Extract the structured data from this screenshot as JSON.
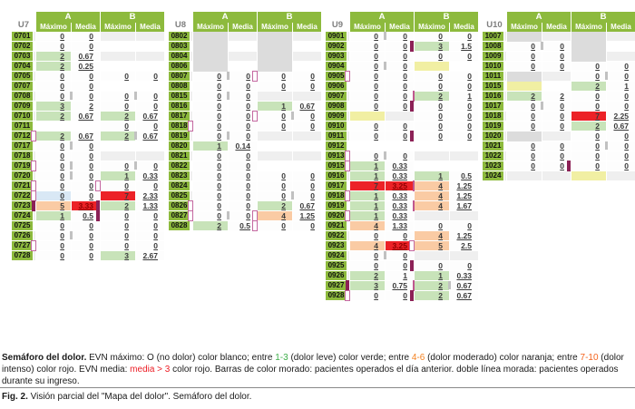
{
  "headers": {
    "groups": [
      "A",
      "B"
    ],
    "cols": [
      "Máximo",
      "Media",
      "Máximo",
      "Media"
    ]
  },
  "colors": {
    "header_green": "#8DBA3D",
    "cell_green": "#C8E3B9",
    "cell_orange": "#FACBA4",
    "cell_red": "#EC2227",
    "cell_yellow": "#F1EFA3",
    "cell_blue": "#D9E8F5",
    "cell_gray_block": "#DCDCDC",
    "purple_bar": "#8C2156",
    "purple_outline": "#C468A0",
    "legend": {
      "green": "#3DAE49",
      "orange": "#F58220",
      "orange2": "#F4641E",
      "red": "#EC1C24"
    }
  },
  "units": [
    {
      "label": "U7",
      "rows": [
        {
          "id": "0701",
          "c": [
            "0",
            "0",
            "",
            ""
          ],
          "m": []
        },
        {
          "id": "0702",
          "c": [
            "0",
            "0",
            "",
            ""
          ],
          "m": []
        },
        {
          "id": "0703",
          "c": [
            "2|g",
            "0.67",
            "",
            ""
          ],
          "m": []
        },
        {
          "id": "0704",
          "c": [
            "2|g",
            "0.25",
            "",
            ""
          ],
          "m": []
        },
        {
          "id": "0705",
          "c": [
            "0",
            "0",
            "0",
            "0"
          ],
          "m": []
        },
        {
          "id": "0707",
          "c": [
            "0",
            "0",
            "",
            ""
          ],
          "m": []
        },
        {
          "id": "0708",
          "c": [
            "0",
            "0",
            "0",
            "0"
          ],
          "m": [
            "ga",
            "gb"
          ]
        },
        {
          "id": "0709",
          "c": [
            "3|g",
            "2",
            "0",
            "0"
          ],
          "m": []
        },
        {
          "id": "0710",
          "c": [
            "2|g",
            "0.67",
            "2|g",
            "0.67"
          ],
          "m": []
        },
        {
          "id": "0711",
          "c": [
            "",
            "",
            "0",
            "0"
          ],
          "m": []
        },
        {
          "id": "0712",
          "c": [
            "2|g",
            "0.67",
            "2|g",
            "0.67"
          ],
          "m": [
            "Ao",
            "gb"
          ]
        },
        {
          "id": "0717",
          "c": [
            "0",
            "0",
            "",
            ""
          ],
          "m": [
            "ga"
          ]
        },
        {
          "id": "0718",
          "c": [
            "0",
            "0",
            "",
            ""
          ],
          "m": []
        },
        {
          "id": "0719",
          "c": [
            "0",
            "0",
            "0",
            "0"
          ],
          "m": [
            "Ao",
            "ga",
            "gb"
          ]
        },
        {
          "id": "0720",
          "c": [
            "0",
            "0",
            "1|g",
            "0.33"
          ],
          "m": [
            "ga"
          ]
        },
        {
          "id": "0721",
          "c": [
            "0",
            "0",
            "0",
            "0"
          ],
          "m": [
            "Ao",
            "Bo"
          ]
        },
        {
          "id": "0722",
          "c": [
            "0|b",
            "0",
            "7|r",
            "2.33"
          ],
          "m": [
            "Ao"
          ]
        },
        {
          "id": "0723",
          "c": [
            "5|o",
            "3.33|R",
            "2|g",
            "1.33"
          ],
          "m": [
            "As",
            "Bs"
          ]
        },
        {
          "id": "0724",
          "c": [
            "1|g",
            "0.5",
            "0",
            "0"
          ],
          "m": [
            "Bs"
          ]
        },
        {
          "id": "0725",
          "c": [
            "0",
            "0",
            "0",
            "0"
          ],
          "m": []
        },
        {
          "id": "0726",
          "c": [
            "0",
            "0",
            "0",
            "0"
          ],
          "m": [
            "ga"
          ]
        },
        {
          "id": "0727",
          "c": [
            "0",
            "0",
            "0",
            "0"
          ],
          "m": [
            "Ao"
          ]
        },
        {
          "id": "0728",
          "c": [
            "0",
            "0",
            "3|g",
            "2.67"
          ],
          "m": []
        }
      ]
    },
    {
      "label": "U8",
      "rows": [
        {
          "id": "0802",
          "c": [
            "|G",
            "",
            "|G",
            ""
          ],
          "m": []
        },
        {
          "id": "0803",
          "c": [
            "|G",
            "",
            "|G",
            ""
          ],
          "m": []
        },
        {
          "id": "0804",
          "c": [
            "|G",
            "",
            "|G",
            ""
          ],
          "m": []
        },
        {
          "id": "0806",
          "c": [
            "|G",
            "",
            "|G",
            ""
          ],
          "m": []
        },
        {
          "id": "0807",
          "c": [
            "0",
            "0",
            "0",
            "0"
          ],
          "m": [
            "ga",
            "Bo"
          ]
        },
        {
          "id": "0808",
          "c": [
            "0",
            "0",
            "0",
            "0"
          ],
          "m": []
        },
        {
          "id": "0815",
          "c": [
            "0",
            "0",
            "",
            ""
          ],
          "m": [
            "ga"
          ]
        },
        {
          "id": "0816",
          "c": [
            "0",
            "0",
            "1|g",
            "0.67"
          ],
          "m": []
        },
        {
          "id": "0817",
          "c": [
            "0",
            "0",
            "0",
            "0"
          ],
          "m": [
            "Bo",
            "gb"
          ]
        },
        {
          "id": "0818",
          "c": [
            "0",
            "0",
            "0",
            "0"
          ],
          "m": [
            "Ao"
          ]
        },
        {
          "id": "0819",
          "c": [
            "0",
            "0",
            "",
            ""
          ],
          "m": [
            "ga"
          ]
        },
        {
          "id": "0820",
          "c": [
            "1|g",
            "0.14",
            "",
            ""
          ],
          "m": []
        },
        {
          "id": "0821",
          "c": [
            "0",
            "0",
            "",
            ""
          ],
          "m": []
        },
        {
          "id": "0822",
          "c": [
            "0",
            "0",
            "",
            ""
          ],
          "m": []
        },
        {
          "id": "0823",
          "c": [
            "0",
            "0",
            "0",
            "0"
          ],
          "m": []
        },
        {
          "id": "0824",
          "c": [
            "0",
            "0",
            "0",
            "0"
          ],
          "m": []
        },
        {
          "id": "0825",
          "c": [
            "0",
            "0",
            "0",
            "0"
          ],
          "m": [
            "gb"
          ]
        },
        {
          "id": "0826",
          "c": [
            "0",
            "0",
            "2|g",
            "0.67"
          ],
          "m": [
            "Ao"
          ]
        },
        {
          "id": "0827",
          "c": [
            "0",
            "0",
            "4|o",
            "1.25"
          ],
          "m": [
            "Ao",
            "ga",
            "Bo"
          ]
        },
        {
          "id": "0828",
          "c": [
            "2|g",
            "0.5",
            "0",
            "0"
          ],
          "m": [
            "Bo"
          ]
        }
      ]
    },
    {
      "label": "U9",
      "rows": [
        {
          "id": "0901",
          "c": [
            "0",
            "0",
            "0",
            "0"
          ],
          "m": [
            "ga"
          ]
        },
        {
          "id": "0902",
          "c": [
            "0",
            "0",
            "3|g",
            "1.5"
          ],
          "m": [
            "Bs"
          ]
        },
        {
          "id": "0903",
          "c": [
            "0",
            "0",
            "0",
            "0"
          ],
          "m": []
        },
        {
          "id": "0904",
          "c": [
            "0",
            "0",
            "|y",
            ""
          ],
          "m": [
            "ga"
          ]
        },
        {
          "id": "0905",
          "c": [
            "0",
            "0",
            "0",
            "0"
          ],
          "m": [
            "Ao"
          ]
        },
        {
          "id": "0906",
          "c": [
            "0",
            "0",
            "0",
            "0"
          ],
          "m": []
        },
        {
          "id": "0907",
          "c": [
            "0",
            "0",
            "2|g",
            "1"
          ],
          "m": [
            "Bl"
          ]
        },
        {
          "id": "0908",
          "c": [
            "0",
            "0",
            "0",
            "0"
          ],
          "m": [
            "Bs"
          ]
        },
        {
          "id": "0909",
          "c": [
            "|y",
            "",
            "0",
            "0"
          ],
          "m": []
        },
        {
          "id": "0910",
          "c": [
            "0",
            "0",
            "0",
            "0"
          ],
          "m": []
        },
        {
          "id": "0911",
          "c": [
            "0",
            "0",
            "0",
            "0"
          ],
          "m": [
            "Bs"
          ]
        },
        {
          "id": "0912",
          "c": [
            "",
            "",
            "",
            ""
          ],
          "m": []
        },
        {
          "id": "0913",
          "c": [
            "0",
            "0",
            "",
            ""
          ],
          "m": [
            "Ao",
            "ga"
          ]
        },
        {
          "id": "0915",
          "c": [
            "1|g",
            "0.33",
            "",
            ""
          ],
          "m": [
            "Ao"
          ]
        },
        {
          "id": "0916",
          "c": [
            "1|g",
            "0.33",
            "1|g",
            "0.5"
          ],
          "m": []
        },
        {
          "id": "0917",
          "c": [
            "7|r",
            "3.25|R",
            "4|o",
            "1.25"
          ],
          "m": [
            "Bl"
          ]
        },
        {
          "id": "0918",
          "c": [
            "1|g",
            "0.33",
            "4|o",
            "1.25"
          ],
          "m": [
            "Ao"
          ]
        },
        {
          "id": "0919",
          "c": [
            "1|g",
            "0.33",
            "4|o",
            "1.67"
          ],
          "m": [
            "Bl"
          ]
        },
        {
          "id": "0920",
          "c": [
            "1|g",
            "0.33",
            "",
            ""
          ],
          "m": [
            "Ao"
          ]
        },
        {
          "id": "0921",
          "c": [
            "4|o",
            "1.33",
            "0",
            "0"
          ],
          "m": []
        },
        {
          "id": "0922",
          "c": [
            "0",
            "0",
            "4|o",
            "1.25"
          ],
          "m": []
        },
        {
          "id": "0923",
          "c": [
            "4|o",
            "3.25|R",
            "5|o",
            "2.5"
          ],
          "m": [
            "Bo"
          ]
        },
        {
          "id": "0924",
          "c": [
            "0",
            "0",
            "",
            ""
          ],
          "m": [
            "ga"
          ]
        },
        {
          "id": "0925",
          "c": [
            "0",
            "0",
            "0",
            "0"
          ],
          "m": [
            "Bs"
          ]
        },
        {
          "id": "0926",
          "c": [
            "2|g",
            "1",
            "1|g",
            "0.33"
          ],
          "m": []
        },
        {
          "id": "0927",
          "c": [
            "3|g",
            "0.75",
            "2|g",
            "0.67"
          ],
          "m": [
            "As",
            "Bl",
            "gb"
          ]
        },
        {
          "id": "0928",
          "c": [
            "0",
            "0",
            "2|g",
            "0.67"
          ],
          "m": [
            "Ao",
            "Bs"
          ]
        }
      ]
    },
    {
      "label": "U10",
      "rows": [
        {
          "id": "1007",
          "c": [
            "|G",
            "",
            "|G",
            ""
          ],
          "m": []
        },
        {
          "id": "1008",
          "c": [
            "0",
            "0",
            "|G",
            ""
          ],
          "m": [
            "ga"
          ]
        },
        {
          "id": "1009",
          "c": [
            "0",
            "0",
            "|G",
            ""
          ],
          "m": []
        },
        {
          "id": "1010",
          "c": [
            "0",
            "0",
            "0",
            "0"
          ],
          "m": []
        },
        {
          "id": "1011",
          "c": [
            "|G",
            "",
            "0",
            "0"
          ],
          "m": [
            "gb"
          ]
        },
        {
          "id": "1015",
          "c": [
            "|y",
            "",
            "2|g",
            "1"
          ],
          "m": []
        },
        {
          "id": "1016",
          "c": [
            "2|g",
            "2",
            "0",
            "0"
          ],
          "m": []
        },
        {
          "id": "1017",
          "c": [
            "0",
            "0",
            "0",
            "0"
          ],
          "m": [
            "ga"
          ]
        },
        {
          "id": "1018",
          "c": [
            "0",
            "0",
            "7|r",
            "2.25"
          ],
          "m": []
        },
        {
          "id": "1019",
          "c": [
            "0",
            "0",
            "2|g",
            "0.67"
          ],
          "m": []
        },
        {
          "id": "1020",
          "c": [
            "|G",
            "",
            "0",
            "0"
          ],
          "m": []
        },
        {
          "id": "1021",
          "c": [
            "0",
            "0",
            "0",
            "0"
          ],
          "m": [
            "gb"
          ]
        },
        {
          "id": "1022",
          "c": [
            "0",
            "0",
            "0",
            "0"
          ],
          "m": []
        },
        {
          "id": "1023",
          "c": [
            "0",
            "0",
            "0",
            "0"
          ],
          "m": [
            "Bs"
          ]
        },
        {
          "id": "1024",
          "c": [
            "",
            "",
            "|y",
            ""
          ],
          "m": []
        }
      ]
    }
  ],
  "caption": {
    "segments": [
      {
        "t": "Semáforo del dolor.",
        "b": true
      },
      {
        "t": " EVN máximo: O (no dolor) color blanco; entre "
      },
      {
        "t": "1-3",
        "c": "green"
      },
      {
        "t": " (dolor leve) color verde; entre "
      },
      {
        "t": "4-6",
        "c": "orange"
      },
      {
        "t": " (dolor moderado) color naranja; entre "
      },
      {
        "t": "7-10",
        "c": "orange2"
      },
      {
        "t": " (dolor intenso) color rojo. EVN media: "
      },
      {
        "t": "media > 3",
        "c": "red"
      },
      {
        "t": " color rojo. Barras de color morado: pacientes operados el día anterior. doble línea morada: pacientes operados durante su ingreso."
      }
    ]
  },
  "fig_caption": {
    "prefix": "Fig. 2.",
    "text": " Visión parcial del \"Mapa del dolor\". Semáforo del dolor."
  }
}
